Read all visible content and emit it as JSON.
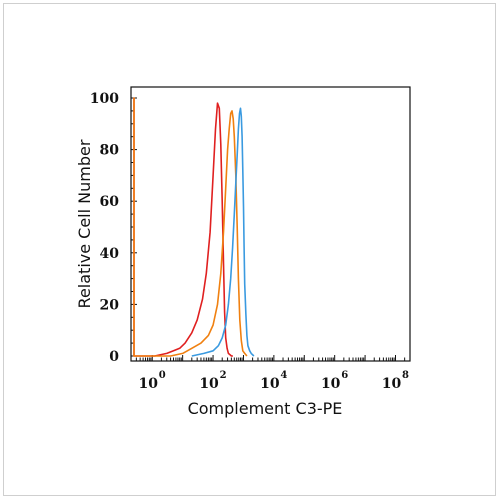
{
  "chart_data": {
    "type": "line",
    "title": "",
    "xlabel": "Complement C3-PE",
    "ylabel": "Relative Cell Number",
    "x_scale": "log",
    "xlim": [
      0.2,
      300000000
    ],
    "ylim": [
      0,
      100
    ],
    "x_ticks": [
      {
        "base": "10",
        "exp": "0",
        "value": 1
      },
      {
        "base": "10",
        "exp": "2",
        "value": 100
      },
      {
        "base": "10",
        "exp": "4",
        "value": 10000
      },
      {
        "base": "10",
        "exp": "6",
        "value": 1000000
      },
      {
        "base": "10",
        "exp": "8",
        "value": 100000000
      }
    ],
    "y_ticks": [
      0,
      20,
      40,
      60,
      80,
      100
    ],
    "grid": false,
    "legend": "none",
    "series": [
      {
        "color": "#e02020",
        "x": [
          0.2,
          0.2,
          0.2,
          0.2,
          1.2,
          3,
          5,
          8,
          12,
          20,
          30,
          45,
          60,
          80,
          100,
          120,
          140,
          160,
          180,
          200,
          220,
          240,
          260,
          290,
          320,
          360,
          400,
          450
        ],
        "y": [
          0,
          100,
          100,
          0,
          0,
          1,
          2,
          3,
          5,
          9,
          14,
          22,
          32,
          48,
          70,
          88,
          98,
          96,
          82,
          60,
          36,
          17,
          7,
          3,
          1,
          0.5,
          0,
          0
        ]
      },
      {
        "color": "#f08010",
        "x": [
          0.2,
          0.2,
          0.2,
          0.2,
          4,
          10,
          20,
          40,
          70,
          100,
          140,
          180,
          220,
          260,
          300,
          340,
          380,
          420,
          460,
          500,
          560,
          620,
          680,
          760,
          850,
          950,
          1100,
          1300
        ],
        "y": [
          0,
          100,
          100,
          0,
          0,
          1,
          3,
          5,
          8,
          12,
          20,
          32,
          48,
          65,
          80,
          88,
          94,
          95,
          92,
          85,
          70,
          50,
          30,
          14,
          6,
          2,
          1,
          0
        ]
      },
      {
        "color": "#3a9ae0",
        "x": [
          20,
          50,
          100,
          150,
          200,
          260,
          320,
          380,
          440,
          500,
          560,
          620,
          680,
          740,
          800,
          850,
          900,
          950,
          1000,
          1050,
          1100,
          1200,
          1300,
          1400,
          1600,
          1800,
          2200
        ],
        "y": [
          0,
          1,
          2,
          4,
          7,
          12,
          20,
          30,
          42,
          55,
          67,
          78,
          88,
          94,
          96,
          93,
          85,
          72,
          58,
          42,
          28,
          16,
          8,
          4,
          2,
          1,
          0
        ]
      }
    ]
  }
}
